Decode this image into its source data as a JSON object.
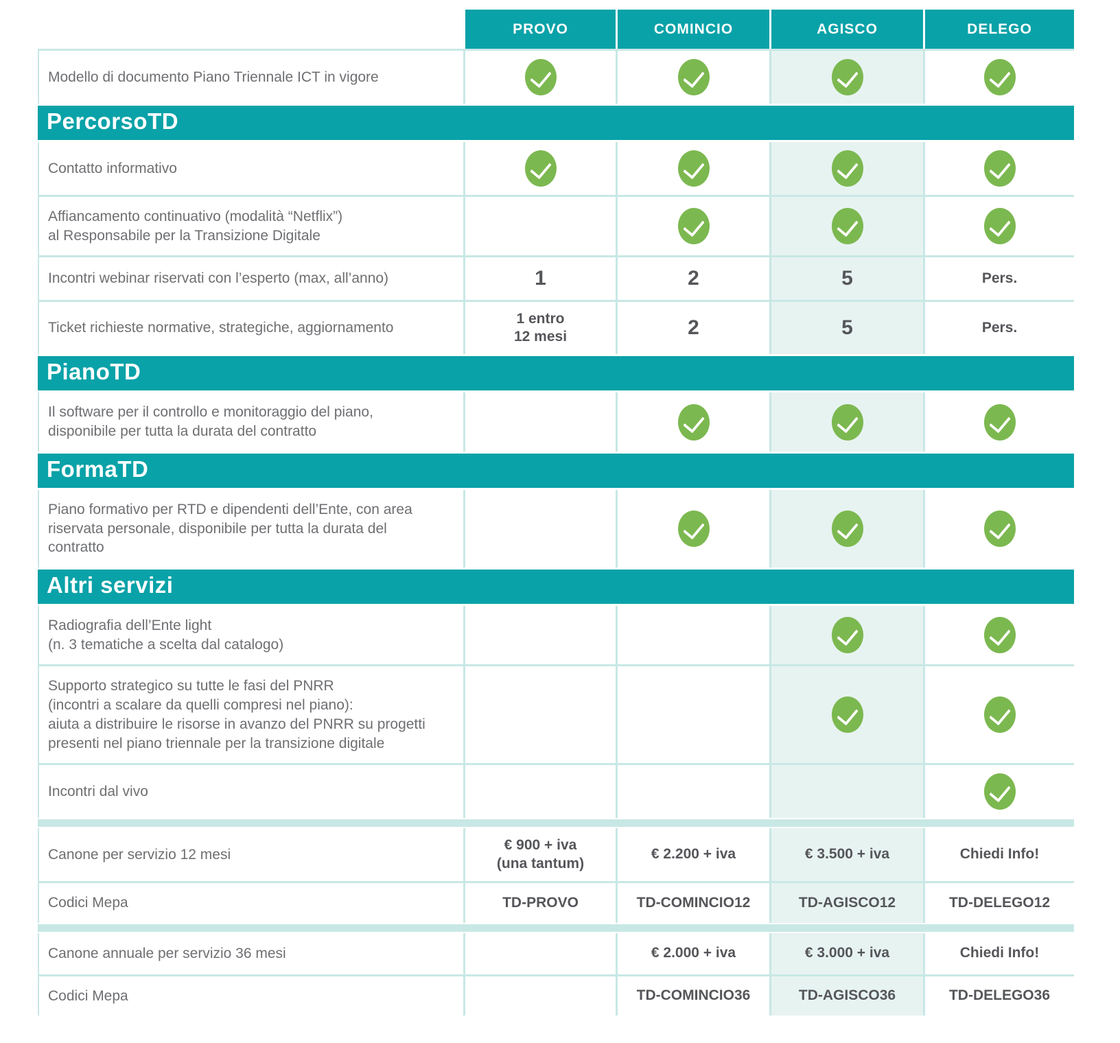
{
  "colors": {
    "teal": "#09A2A8",
    "column_highlight_tint": "#E7F3F1",
    "grid_line": "#C8E8E5",
    "check_green": "#7CB850",
    "label_text": "#6E6F72",
    "value_text": "#55565A"
  },
  "icons": {
    "check": "✓"
  },
  "table": {
    "columns": [
      "PROVO",
      "COMINCIO",
      "AGISCO",
      "DELEGO"
    ],
    "highlighted_column": "AGISCO",
    "rows": [
      {
        "type": "item",
        "label": "Modello di documento Piano Triennale ICT in vigore",
        "cells": [
          "✓",
          "✓",
          "✓",
          "✓"
        ]
      },
      {
        "type": "section",
        "label": "PercorsoTD"
      },
      {
        "type": "item",
        "label": "Contatto informativo",
        "cells": [
          "✓",
          "✓",
          "✓",
          "✓"
        ]
      },
      {
        "type": "item",
        "label": "Affiancamento continuativo (modalità “Netflix”)\nal Responsabile per la Transizione Digitale",
        "cells": [
          "",
          "✓",
          "✓",
          "✓"
        ]
      },
      {
        "type": "item",
        "label": "Incontri webinar riservati con l’esperto (max, all’anno)",
        "cells": [
          "1",
          "2",
          "5",
          "Pers."
        ]
      },
      {
        "type": "item",
        "label": "Ticket richieste normative, strategiche, aggiornamento",
        "cells": [
          "1 entro\n12 mesi",
          "2",
          "5",
          "Pers."
        ]
      },
      {
        "type": "section",
        "label": "PianoTD"
      },
      {
        "type": "item",
        "label": "Il software per il controllo e monitoraggio del piano,\ndisponibile per tutta la durata del contratto",
        "cells": [
          "",
          "✓",
          "✓",
          "✓"
        ]
      },
      {
        "type": "section",
        "label": "FormaTD"
      },
      {
        "type": "item",
        "label": "Piano formativo per RTD e dipendenti dell’Ente, con area\nriservata personale, disponibile per tutta la durata del contratto",
        "cells": [
          "",
          "✓",
          "✓",
          "✓"
        ]
      },
      {
        "type": "section",
        "label": "Altri servizi"
      },
      {
        "type": "item",
        "label": "Radiografia dell’Ente light\n(n. 3 tematiche a scelta dal catalogo)",
        "cells": [
          "",
          "",
          "✓",
          "✓"
        ]
      },
      {
        "type": "item",
        "label": "Supporto strategico su tutte le fasi del PNRR\n(incontri a scalare da quelli compresi nel piano):\naiuta a distribuire le risorse in avanzo del PNRR su progetti\npresenti nel piano triennale per la transizione digitale",
        "cells": [
          "",
          "",
          "✓",
          "✓"
        ]
      },
      {
        "type": "item",
        "label": "Incontri dal vivo",
        "cells": [
          "",
          "",
          "",
          "✓"
        ]
      },
      {
        "type": "separator"
      },
      {
        "type": "item",
        "label": "Canone per servizio 12 mesi",
        "cells": [
          "€ 900 + iva\n(una tantum)",
          "€ 2.200 + iva",
          "€ 3.500 + iva",
          "Chiedi Info!"
        ]
      },
      {
        "type": "item",
        "label": "Codici Mepa",
        "cells": [
          "TD-PROVO",
          "TD-COMINCIO12",
          "TD-AGISCO12",
          "TD-DELEGO12"
        ]
      },
      {
        "type": "separator"
      },
      {
        "type": "item",
        "label": "Canone annuale per servizio 36 mesi",
        "cells": [
          "",
          "€ 2.000 + iva",
          "€ 3.000 + iva",
          "Chiedi Info!"
        ]
      },
      {
        "type": "item",
        "label": "Codici Mepa",
        "cells": [
          "",
          "TD-COMINCIO36",
          "TD-AGISCO36",
          "TD-DELEGO36"
        ]
      }
    ]
  }
}
